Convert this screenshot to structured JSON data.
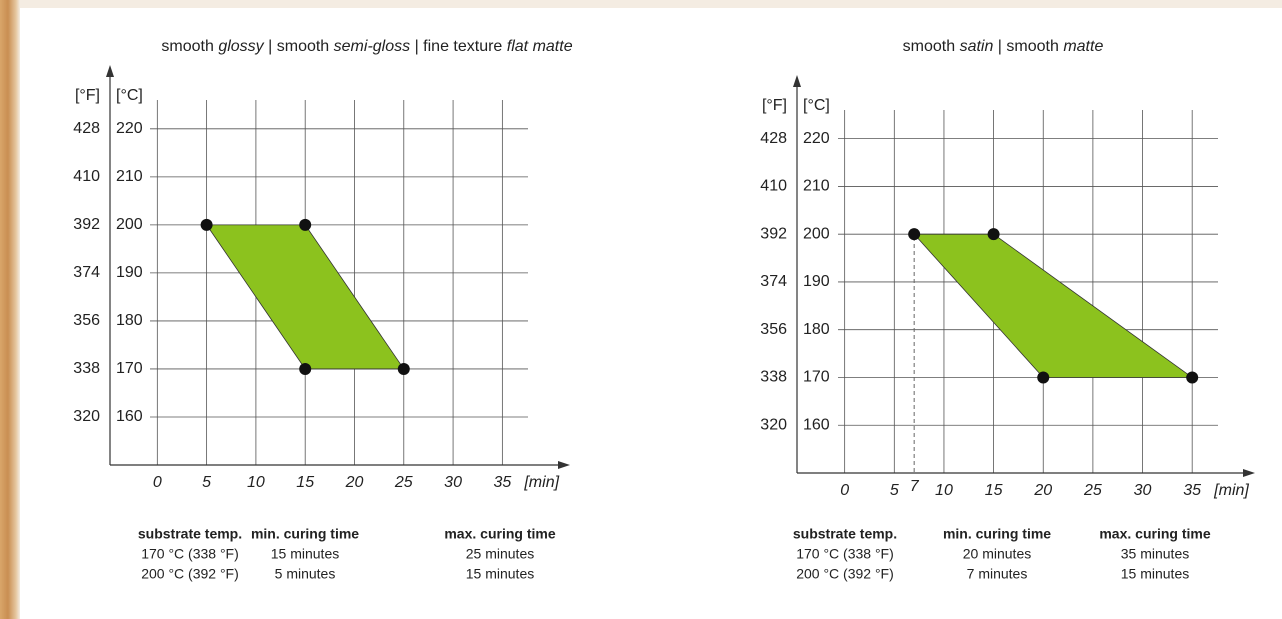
{
  "chart_data": [
    {
      "type": "polygon",
      "title": [
        {
          "text": "smooth ",
          "italic": false
        },
        {
          "text": "glossy",
          "italic": true
        },
        {
          "text": " | smooth ",
          "italic": false
        },
        {
          "text": "semi-gloss",
          "italic": true
        },
        {
          "text": " | fine texture ",
          "italic": false
        },
        {
          "text": "flat matte",
          "italic": true
        }
      ],
      "y_label": "[°C]",
      "y2_label": "[°F]",
      "x_label": "[min]",
      "xlim": [
        -4.8,
        37.6
      ],
      "xticks": [
        0,
        5,
        10,
        15,
        20,
        25,
        30,
        35
      ],
      "ylim": [
        150,
        226
      ],
      "yticks": [
        160,
        170,
        180,
        190,
        200,
        210,
        220
      ],
      "y2lim": [
        302,
        438.8
      ],
      "y2ticks": [
        320,
        338,
        356,
        374,
        392,
        410,
        428
      ],
      "grid": true,
      "color": "#8cc21e",
      "point_color": "#111111",
      "x": [
        5,
        15,
        25,
        15
      ],
      "y": [
        200,
        200,
        170,
        170
      ],
      "table": {
        "columns": [
          "substrate temp.",
          "min. curing time",
          "max. curing time"
        ],
        "rows": [
          [
            "170 °C (338 °F)",
            "15 minutes",
            "25 minutes"
          ],
          [
            "200 °C (392 °F)",
            "5 minutes",
            "15 minutes"
          ]
        ]
      }
    },
    {
      "type": "polygon",
      "title": [
        {
          "text": "smooth ",
          "italic": false
        },
        {
          "text": "satin",
          "italic": true
        },
        {
          "text": " | smooth ",
          "italic": false
        },
        {
          "text": "matte",
          "italic": true
        }
      ],
      "y_label": "[°C]",
      "y2_label": "[°F]",
      "x_label": "[min]",
      "xlim": [
        -4.8,
        37.6
      ],
      "xticks": [
        0,
        5,
        10,
        15,
        20,
        25,
        30,
        35
      ],
      "ylim": [
        150,
        226
      ],
      "yticks": [
        160,
        170,
        180,
        190,
        200,
        210,
        220
      ],
      "y2lim": [
        302,
        438.8
      ],
      "y2ticks": [
        320,
        338,
        356,
        374,
        392,
        410,
        428
      ],
      "grid": true,
      "color": "#8cc21e",
      "point_color": "#111111",
      "x": [
        7,
        15,
        35,
        20
      ],
      "y": [
        200,
        200,
        170,
        170
      ],
      "x_marker": 7,
      "table": {
        "columns": [
          "substrate temp.",
          "min. curing time",
          "max. curing time"
        ],
        "rows": [
          [
            "170 °C (338 °F)",
            "20 minutes",
            "35 minutes"
          ],
          [
            "200 °C (392 °F)",
            "7 minutes",
            "15 minutes"
          ]
        ]
      }
    }
  ]
}
